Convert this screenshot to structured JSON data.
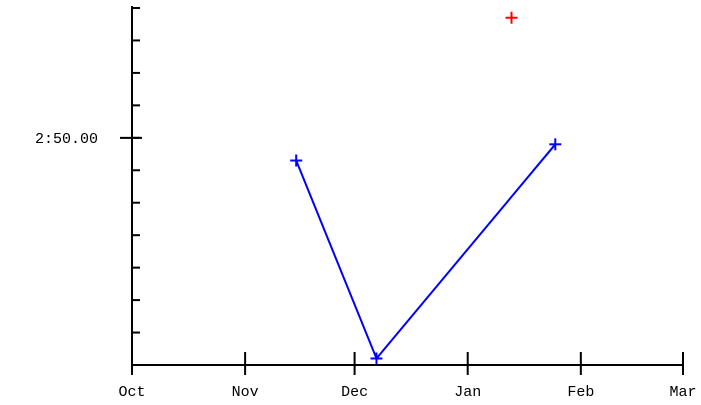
{
  "chart_data": {
    "type": "line",
    "title": "",
    "xlabel": "",
    "ylabel": "",
    "x_tick_labels": [
      "Oct",
      "Nov",
      "Dec",
      "Jan",
      "Feb",
      "Mar"
    ],
    "x_ticks": [
      "2000-10-01",
      "2000-11-01",
      "2000-12-01",
      "2001-01-01",
      "2001-02-01",
      "2001-03-01"
    ],
    "xlim": [
      "2000-10-01",
      "2001-03-01"
    ],
    "y_tick_labels": [
      "2:50.00"
    ],
    "y_ticks": [
      170
    ],
    "y_minor_tick_step_seconds": 1,
    "ylim": [
      163,
      174
    ],
    "grid": false,
    "legend": "none",
    "series": [
      {
        "color": "#0000ff",
        "marker": "+",
        "line": true,
        "points": [
          {
            "x": "2000-11-15",
            "y": 169.3
          },
          {
            "x": "2000-12-07",
            "y": 163.2
          },
          {
            "x": "2001-01-25",
            "y": 169.8
          }
        ]
      },
      {
        "color": "#ff0000",
        "marker": "+",
        "line": false,
        "points": [
          {
            "x": "2001-01-13",
            "y": 173.7
          }
        ]
      }
    ]
  }
}
